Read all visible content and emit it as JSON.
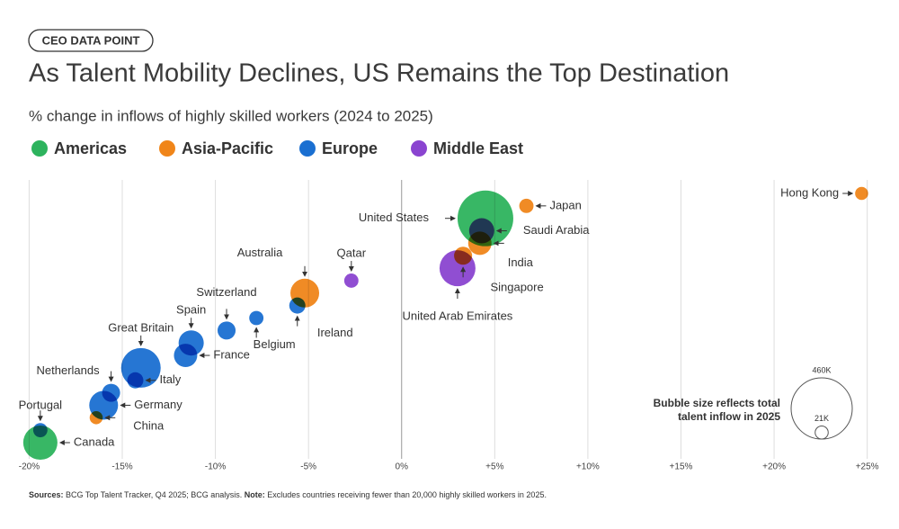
{
  "chart_data": {
    "type": "bubble",
    "kicker": "CEO DATA POINT",
    "title": "As Talent Mobility Declines, US Remains the Top Destination",
    "subtitle": "% change in inflows of highly skilled workers (2024 to 2025)",
    "series": [
      {
        "name": "Americas",
        "color": "#2db35d"
      },
      {
        "name": "Asia-Pacific",
        "color": "#f08519"
      },
      {
        "name": "Europe",
        "color": "#1a6fd1"
      },
      {
        "name": "Middle East",
        "color": "#8a44d0"
      }
    ],
    "points": [
      {
        "label": "Canada",
        "region": "Americas",
        "x": -19.4,
        "size": 144
      },
      {
        "label": "Portugal",
        "region": "Europe",
        "x": -19.4,
        "size": 25
      },
      {
        "label": "China",
        "region": "Asia-Pacific",
        "x": -16.4,
        "size": 21
      },
      {
        "label": "Germany",
        "region": "Europe",
        "x": -16.0,
        "size": 102
      },
      {
        "label": "Netherlands",
        "region": "Europe",
        "x": -15.6,
        "size": 40
      },
      {
        "label": "Italy",
        "region": "Europe",
        "x": -14.3,
        "size": 32
      },
      {
        "label": "Great Britain",
        "region": "Europe",
        "x": -14.0,
        "size": 193
      },
      {
        "label": "France",
        "region": "Europe",
        "x": -11.6,
        "size": 67
      },
      {
        "label": "Spain",
        "region": "Europe",
        "x": -11.3,
        "size": 78
      },
      {
        "label": "Switzerland",
        "region": "Europe",
        "x": -9.4,
        "size": 40
      },
      {
        "label": "Belgium",
        "region": "Europe",
        "x": -7.8,
        "size": 25
      },
      {
        "label": "Ireland",
        "region": "Europe",
        "x": -5.6,
        "size": 32
      },
      {
        "label": "Australia",
        "region": "Asia-Pacific",
        "x": -5.2,
        "size": 102
      },
      {
        "label": "Qatar",
        "region": "Middle East",
        "x": -2.7,
        "size": 25
      },
      {
        "label": "United Arab Emirates",
        "region": "Middle East",
        "x": 3.0,
        "size": 159
      },
      {
        "label": "Singapore",
        "region": "Asia-Pacific",
        "x": 3.3,
        "size": 40
      },
      {
        "label": "India",
        "region": "Asia-Pacific",
        "x": 4.2,
        "size": 67
      },
      {
        "label": "Saudi Arabia",
        "region": "Middle East",
        "x": 4.3,
        "size": 78
      },
      {
        "label": "United States",
        "region": "Americas",
        "x": 4.5,
        "size": 382
      },
      {
        "label": "Japan",
        "region": "Asia-Pacific",
        "x": 6.7,
        "size": 25
      },
      {
        "label": "Hong Kong",
        "region": "Asia-Pacific",
        "x": 24.7,
        "size": 21
      }
    ],
    "xlim": [
      -20.6,
      25.5
    ],
    "xticks": [
      {
        "value": -20,
        "label": "-20%"
      },
      {
        "value": -15,
        "label": "-15%"
      },
      {
        "value": -10,
        "label": "-10%"
      },
      {
        "value": -5,
        "label": "-5%"
      },
      {
        "value": 0,
        "label": "0%"
      },
      {
        "value": 5,
        "label": "+5%"
      },
      {
        "value": 10,
        "label": "+10%"
      },
      {
        "value": 15,
        "label": "+15%"
      },
      {
        "value": 20,
        "label": "+20%"
      },
      {
        "value": 25,
        "label": "+25%"
      }
    ],
    "grid": true,
    "size_legend": {
      "title": [
        "Bubble size reflects total",
        "talent inflow in 2025"
      ],
      "items": [
        {
          "value": 460,
          "label": "460K"
        },
        {
          "value": 21,
          "label": "21K"
        }
      ]
    },
    "footnote": {
      "source_label": "Sources:",
      "source": " BCG Top Talent Tracker, Q4 2025; BCG analysis. ",
      "note_label": "Note:",
      "note": " Excludes countries receiving fewer than 20,000 highly skilled workers in 2025."
    }
  }
}
